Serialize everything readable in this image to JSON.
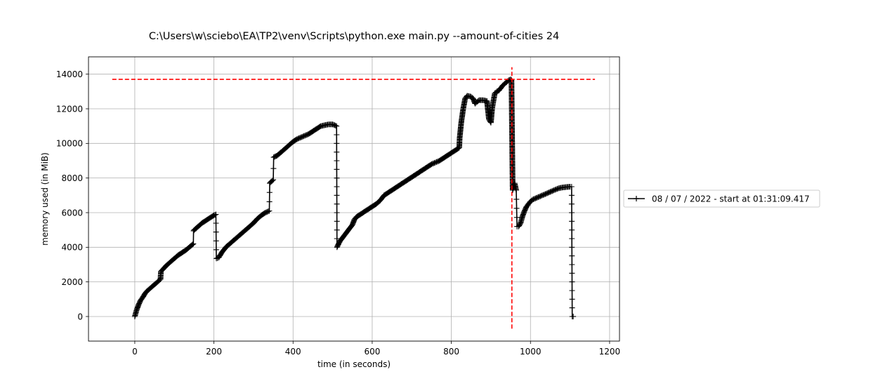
{
  "chart_data": {
    "type": "line",
    "title": "C:\\Users\\w\\sciebo\\EA\\TP2\\venv\\Scripts\\python.exe main.py --amount-of-cities 24",
    "xlabel": "time (in seconds)",
    "ylabel": "memory used (in MiB)",
    "xlim": [
      -117,
      1225
    ],
    "ylim": [
      -1420,
      15000
    ],
    "xticks": [
      0,
      200,
      400,
      600,
      800,
      1000,
      1200
    ],
    "yticks": [
      0,
      2000,
      4000,
      6000,
      8000,
      10000,
      12000,
      14000
    ],
    "grid": true,
    "legend_position": "outside-right",
    "series": [
      {
        "name": "08 / 07 / 2022 - start at 01:31:09.417",
        "color": "#000000",
        "marker": "plus",
        "points": [
          [
            0,
            0
          ],
          [
            5,
            400
          ],
          [
            10,
            700
          ],
          [
            15,
            950
          ],
          [
            20,
            1100
          ],
          [
            25,
            1300
          ],
          [
            30,
            1450
          ],
          [
            40,
            1650
          ],
          [
            50,
            1850
          ],
          [
            60,
            2050
          ],
          [
            65,
            2150
          ],
          [
            66,
            2600
          ],
          [
            70,
            2700
          ],
          [
            80,
            2950
          ],
          [
            90,
            3150
          ],
          [
            100,
            3350
          ],
          [
            110,
            3550
          ],
          [
            120,
            3700
          ],
          [
            130,
            3850
          ],
          [
            140,
            4050
          ],
          [
            148,
            4200
          ],
          [
            148.5,
            4950
          ],
          [
            150,
            5000
          ],
          [
            160,
            5200
          ],
          [
            170,
            5400
          ],
          [
            180,
            5550
          ],
          [
            190,
            5700
          ],
          [
            200,
            5850
          ],
          [
            205,
            5900
          ],
          [
            206,
            3350
          ],
          [
            212,
            3400
          ],
          [
            220,
            3700
          ],
          [
            230,
            4000
          ],
          [
            240,
            4200
          ],
          [
            250,
            4400
          ],
          [
            260,
            4600
          ],
          [
            270,
            4800
          ],
          [
            280,
            5000
          ],
          [
            290,
            5200
          ],
          [
            300,
            5400
          ],
          [
            310,
            5650
          ],
          [
            320,
            5850
          ],
          [
            330,
            6000
          ],
          [
            340,
            6100
          ],
          [
            341,
            7700
          ],
          [
            345,
            7800
          ],
          [
            350,
            7900
          ],
          [
            351,
            9200
          ],
          [
            360,
            9300
          ],
          [
            370,
            9500
          ],
          [
            380,
            9700
          ],
          [
            390,
            9900
          ],
          [
            400,
            10100
          ],
          [
            410,
            10250
          ],
          [
            420,
            10350
          ],
          [
            430,
            10450
          ],
          [
            440,
            10550
          ],
          [
            450,
            10700
          ],
          [
            460,
            10850
          ],
          [
            470,
            11000
          ],
          [
            480,
            11050
          ],
          [
            490,
            11100
          ],
          [
            500,
            11100
          ],
          [
            505,
            11050
          ],
          [
            510,
            11000
          ],
          [
            511,
            4000
          ],
          [
            515,
            4200
          ],
          [
            520,
            4400
          ],
          [
            530,
            4700
          ],
          [
            540,
            5000
          ],
          [
            550,
            5300
          ],
          [
            555,
            5600
          ],
          [
            560,
            5750
          ],
          [
            570,
            5900
          ],
          [
            580,
            6050
          ],
          [
            590,
            6200
          ],
          [
            600,
            6350
          ],
          [
            610,
            6500
          ],
          [
            620,
            6700
          ],
          [
            625,
            6850
          ],
          [
            630,
            7000
          ],
          [
            640,
            7150
          ],
          [
            650,
            7300
          ],
          [
            660,
            7450
          ],
          [
            670,
            7600
          ],
          [
            680,
            7750
          ],
          [
            690,
            7900
          ],
          [
            700,
            8050
          ],
          [
            710,
            8200
          ],
          [
            720,
            8350
          ],
          [
            730,
            8500
          ],
          [
            740,
            8650
          ],
          [
            750,
            8800
          ],
          [
            760,
            8900
          ],
          [
            770,
            9000
          ],
          [
            780,
            9150
          ],
          [
            790,
            9300
          ],
          [
            800,
            9450
          ],
          [
            810,
            9600
          ],
          [
            820,
            9750
          ],
          [
            821,
            10300
          ],
          [
            825,
            11200
          ],
          [
            830,
            12000
          ],
          [
            835,
            12600
          ],
          [
            840,
            12750
          ],
          [
            850,
            12700
          ],
          [
            855,
            12600
          ],
          [
            860,
            12300
          ],
          [
            865,
            12400
          ],
          [
            870,
            12500
          ],
          [
            880,
            12500
          ],
          [
            890,
            12450
          ],
          [
            895,
            11400
          ],
          [
            900,
            11200
          ],
          [
            903,
            12000
          ],
          [
            906,
            12400
          ],
          [
            910,
            12900
          ],
          [
            915,
            13000
          ],
          [
            920,
            13050
          ],
          [
            925,
            13200
          ],
          [
            930,
            13350
          ],
          [
            935,
            13450
          ],
          [
            940,
            13550
          ],
          [
            945,
            13650
          ],
          [
            950,
            13700
          ],
          [
            952,
            13650
          ],
          [
            955,
            7300
          ],
          [
            960,
            7700
          ],
          [
            964,
            7300
          ],
          [
            966,
            5200
          ],
          [
            970,
            5200
          ],
          [
            975,
            5400
          ],
          [
            980,
            5800
          ],
          [
            985,
            6100
          ],
          [
            990,
            6350
          ],
          [
            995,
            6500
          ],
          [
            1000,
            6650
          ],
          [
            1005,
            6750
          ],
          [
            1010,
            6800
          ],
          [
            1020,
            6900
          ],
          [
            1030,
            7000
          ],
          [
            1040,
            7100
          ],
          [
            1050,
            7200
          ],
          [
            1060,
            7300
          ],
          [
            1070,
            7400
          ],
          [
            1080,
            7450
          ],
          [
            1090,
            7480
          ],
          [
            1100,
            7500
          ],
          [
            1104,
            7500
          ],
          [
            1104.5,
            5000
          ],
          [
            1105,
            2500
          ],
          [
            1105.5,
            0
          ],
          [
            1108,
            0
          ]
        ]
      }
    ],
    "reference_lines": [
      {
        "orientation": "horizontal",
        "value": 13700,
        "from": -57,
        "to": 1163,
        "color": "#ff0000",
        "style": "dashed"
      },
      {
        "orientation": "vertical",
        "value": 953,
        "from": -700,
        "to": 14400,
        "color": "#ff0000",
        "style": "dashed"
      }
    ]
  }
}
